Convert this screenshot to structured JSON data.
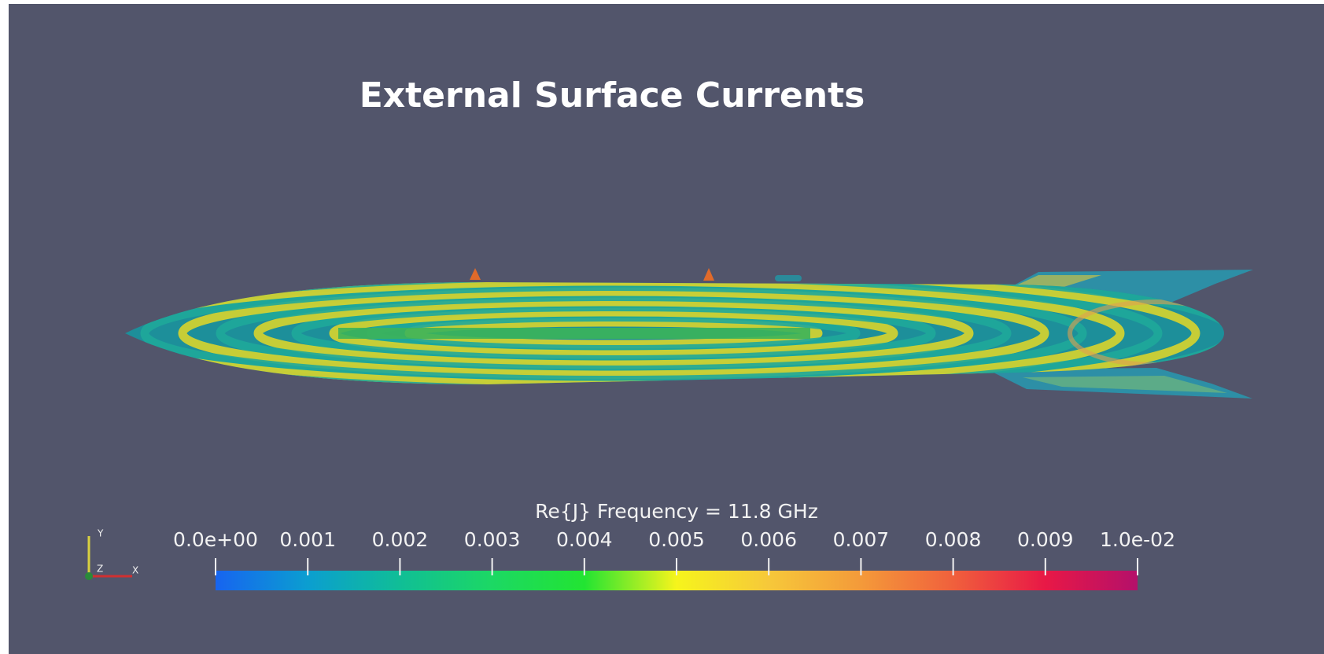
{
  "title": "External Surface Currents",
  "colorbar": {
    "label": "Re{J}   Frequency = 11.8 GHz",
    "range": [
      0,
      0.01
    ],
    "ticks": [
      {
        "value": 0,
        "label": "0.0e+00"
      },
      0.001,
      0.002,
      0.003,
      0.004,
      0.005,
      0.006,
      0.007,
      0.008,
      0.009,
      {
        "value": 0.01,
        "label": "1.0e-02"
      }
    ],
    "colors": [
      "#1764f0",
      "#0b9ed0",
      "#10be96",
      "#1cd864",
      "#22e432",
      "#f6f41c",
      "#f6c83a",
      "#f49a3a",
      "#f0603c",
      "#e81846",
      "#b4106a"
    ]
  },
  "axes_triad": {
    "y": "Y",
    "z": "Z",
    "x": "X"
  }
}
